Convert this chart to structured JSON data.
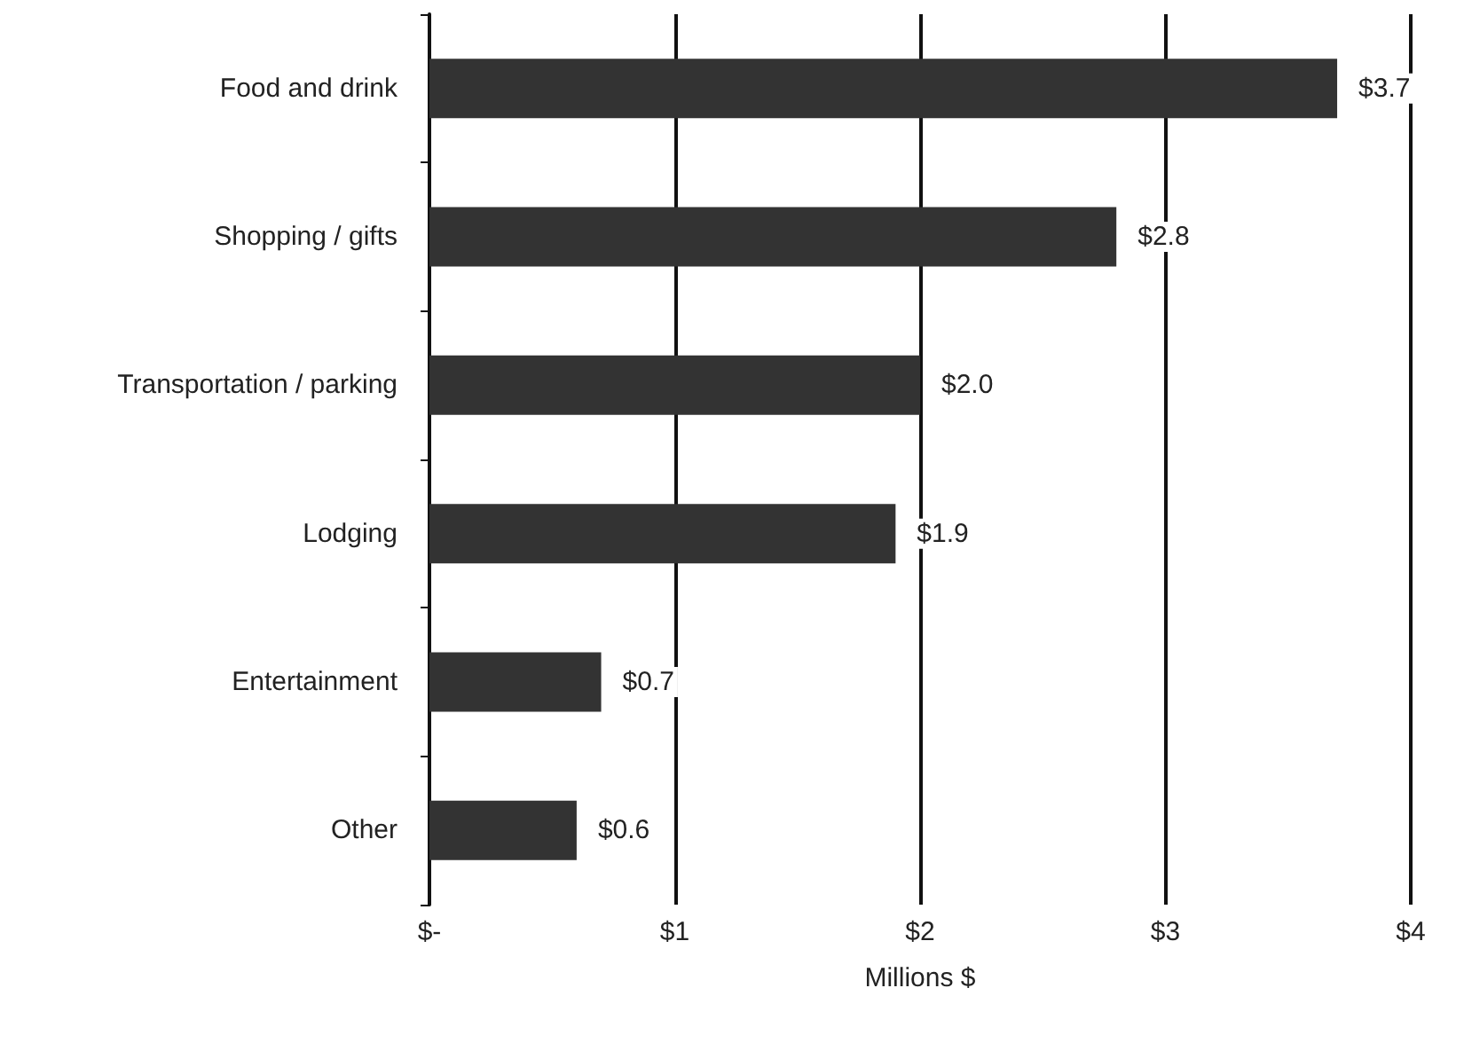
{
  "chart_data": {
    "type": "bar",
    "orientation": "horizontal",
    "xlabel": "Millions $",
    "categories": [
      "Food and drink",
      "Shopping / gifts",
      "Transportation / parking",
      "Lodging",
      "Entertainment",
      "Other"
    ],
    "values": [
      3.7,
      2.8,
      2.0,
      1.9,
      0.7,
      0.6
    ],
    "value_labels": [
      "$3.7",
      "$2.8",
      "$2.0",
      "$1.9",
      "$0.7",
      "$0.6"
    ],
    "color": "#333333",
    "xlim": [
      0,
      4
    ],
    "xticks": [
      {
        "value": 0,
        "label": "$-"
      },
      {
        "value": 1,
        "label": "$1"
      },
      {
        "value": 2,
        "label": "$2"
      },
      {
        "value": 3,
        "label": "$3"
      },
      {
        "value": 4,
        "label": "$4"
      }
    ],
    "grid": "x"
  }
}
